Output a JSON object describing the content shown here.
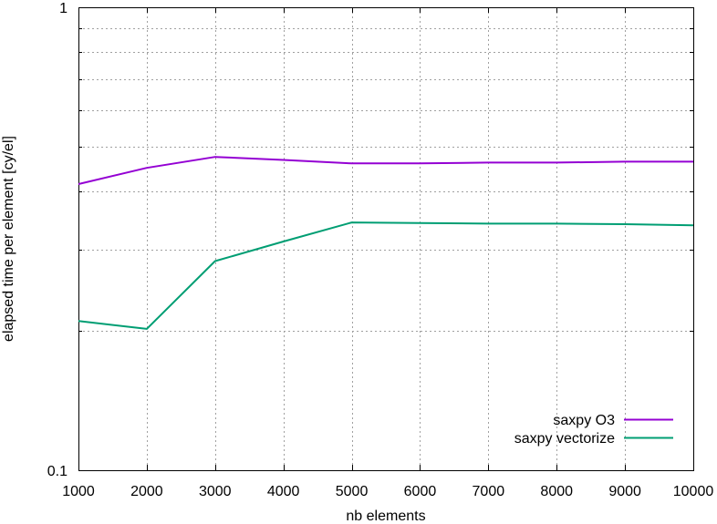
{
  "chart_data": {
    "type": "line",
    "xlabel": "nb elements",
    "ylabel": "elapsed time per element [cy/el]",
    "xlim": [
      1000,
      10000
    ],
    "ylim": [
      0.1,
      1
    ],
    "yscale": "log",
    "grid": true,
    "legend_position": "bottom-right",
    "x_ticks": [
      1000,
      2000,
      3000,
      4000,
      5000,
      6000,
      7000,
      8000,
      9000,
      10000
    ],
    "x_tick_labels": [
      "1000",
      "2000",
      "3000",
      "4000",
      "5000",
      "6000",
      "7000",
      "8000",
      "9000",
      "10000"
    ],
    "y_major_ticks": [
      0.1,
      1
    ],
    "y_major_tick_labels": [
      "0.1",
      "1"
    ],
    "y_minor_ticks": [
      0.2,
      0.3,
      0.4,
      0.5,
      0.6,
      0.7,
      0.8,
      0.9
    ],
    "series": [
      {
        "name": "saxpy O3",
        "color": "#9400d3",
        "x": [
          1000,
          2000,
          3000,
          4000,
          5000,
          6000,
          7000,
          8000,
          9000,
          10000
        ],
        "y": [
          0.415,
          0.45,
          0.475,
          0.468,
          0.46,
          0.46,
          0.462,
          0.462,
          0.464,
          0.464
        ]
      },
      {
        "name": "saxpy vectorize",
        "color": "#009e73",
        "x": [
          1000,
          2000,
          3000,
          4000,
          5000,
          6000,
          7000,
          8000,
          9000,
          10000
        ],
        "y": [
          0.21,
          0.202,
          0.283,
          0.312,
          0.343,
          0.342,
          0.341,
          0.341,
          0.34,
          0.338
        ]
      }
    ]
  }
}
